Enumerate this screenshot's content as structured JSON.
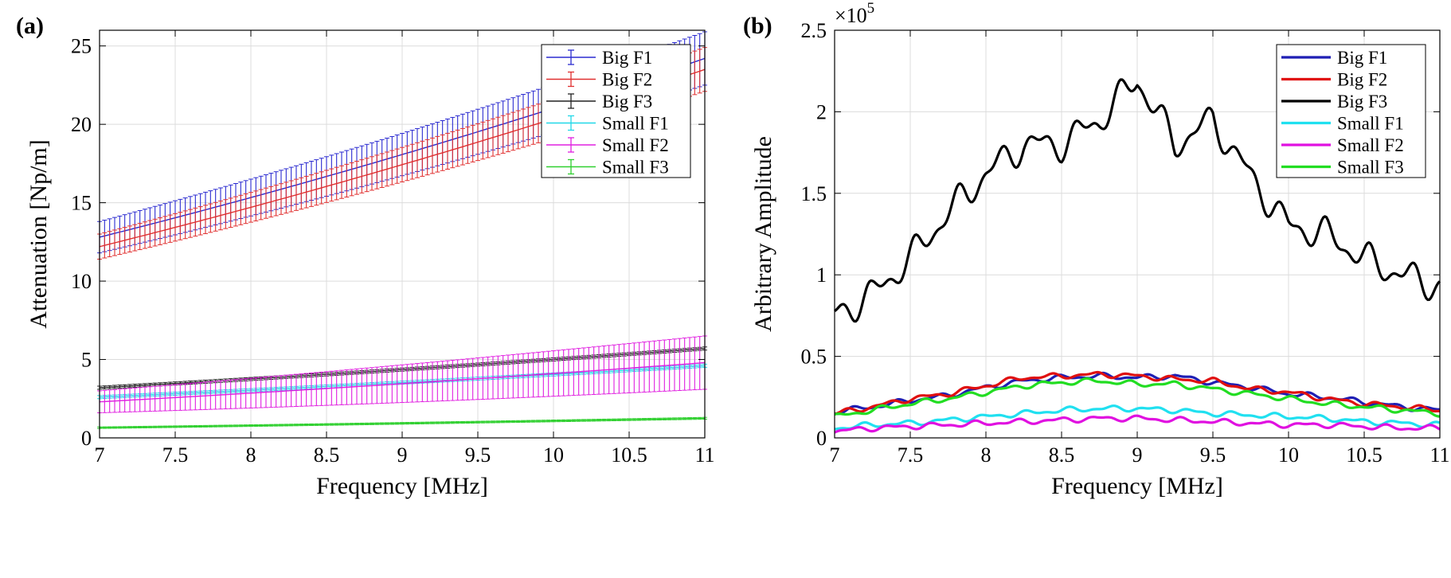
{
  "chart_data": [
    {
      "panel": "(a)",
      "type": "line",
      "errorbars": true,
      "xlabel": "Frequency [MHz]",
      "ylabel": "Attenuation [Np/m]",
      "xlim": [
        7,
        11
      ],
      "ylim": [
        0,
        26
      ],
      "xticks": [
        "7",
        "7.5",
        "8",
        "8.5",
        "9",
        "9.5",
        "10",
        "10.5",
        "11"
      ],
      "yticks": [
        "0",
        "5",
        "10",
        "15",
        "20",
        "25"
      ],
      "grid": true,
      "legend_position": "top-right",
      "x": [
        7,
        11
      ],
      "series": [
        {
          "name": "Big F1",
          "color": "#2b2bd0",
          "values": [
            12.8,
            24.2
          ],
          "err": [
            1.0,
            1.7
          ]
        },
        {
          "name": "Big F2",
          "color": "#e03030",
          "values": [
            12.2,
            23.5
          ],
          "err": [
            0.8,
            1.4
          ]
        },
        {
          "name": "Big F3",
          "color": "#222222",
          "values": [
            3.2,
            5.7
          ],
          "err": [
            0.1,
            0.1
          ]
        },
        {
          "name": "Small F1",
          "color": "#20d8e8",
          "values": [
            2.6,
            4.6
          ],
          "err": [
            0.1,
            0.1
          ]
        },
        {
          "name": "Small F2",
          "color": "#e020e0",
          "values": [
            2.3,
            4.8
          ],
          "err": [
            0.7,
            1.7
          ]
        },
        {
          "name": "Small F3",
          "color": "#30d030",
          "values": [
            0.65,
            1.25
          ],
          "err": [
            0.05,
            0.06
          ]
        }
      ]
    },
    {
      "panel": "(b)",
      "type": "line",
      "xlabel": "Frequency [MHz]",
      "ylabel": "Arbitrary Amplitude",
      "multiplier_base": "×10",
      "multiplier_exp": "5",
      "xlim": [
        7,
        11
      ],
      "ylim": [
        0,
        2.5
      ],
      "xticks": [
        "7",
        "7.5",
        "8",
        "8.5",
        "9",
        "9.5",
        "10",
        "10.5",
        "11"
      ],
      "yticks": [
        "0",
        "0.5",
        "1",
        "1.5",
        "2",
        "2.5"
      ],
      "grid": true,
      "legend_position": "top-right",
      "x": [
        7.0,
        7.25,
        7.5,
        7.75,
        8.0,
        8.25,
        8.5,
        8.75,
        9.0,
        9.25,
        9.5,
        9.75,
        10.0,
        10.25,
        10.5,
        10.75,
        11.0
      ],
      "series": [
        {
          "name": "Big F1",
          "color": "#1f1fb4",
          "values": [
            0.16,
            0.19,
            0.23,
            0.26,
            0.31,
            0.35,
            0.37,
            0.38,
            0.37,
            0.38,
            0.34,
            0.31,
            0.27,
            0.25,
            0.22,
            0.19,
            0.17
          ]
        },
        {
          "name": "Big F2",
          "color": "#e01010",
          "values": [
            0.15,
            0.19,
            0.24,
            0.27,
            0.32,
            0.37,
            0.38,
            0.39,
            0.38,
            0.36,
            0.35,
            0.3,
            0.28,
            0.24,
            0.21,
            0.19,
            0.17
          ]
        },
        {
          "name": "Big F3",
          "color": "#000000",
          "values": [
            0.75,
            0.88,
            1.1,
            1.38,
            1.62,
            1.8,
            1.8,
            1.95,
            2.2,
            1.8,
            1.95,
            1.6,
            1.3,
            1.25,
            1.1,
            1.0,
            0.93
          ]
        },
        {
          "name": "Small F1",
          "color": "#20e0f0",
          "values": [
            0.06,
            0.08,
            0.09,
            0.11,
            0.13,
            0.15,
            0.17,
            0.18,
            0.18,
            0.17,
            0.15,
            0.14,
            0.13,
            0.12,
            0.1,
            0.09,
            0.08
          ]
        },
        {
          "name": "Small F2",
          "color": "#e010e0",
          "values": [
            0.04,
            0.06,
            0.07,
            0.08,
            0.09,
            0.1,
            0.11,
            0.12,
            0.12,
            0.11,
            0.1,
            0.09,
            0.08,
            0.08,
            0.07,
            0.06,
            0.06
          ]
        },
        {
          "name": "Small F3",
          "color": "#22dd22",
          "values": [
            0.13,
            0.17,
            0.21,
            0.24,
            0.28,
            0.32,
            0.34,
            0.35,
            0.33,
            0.33,
            0.3,
            0.27,
            0.24,
            0.21,
            0.19,
            0.17,
            0.15
          ]
        }
      ]
    }
  ]
}
